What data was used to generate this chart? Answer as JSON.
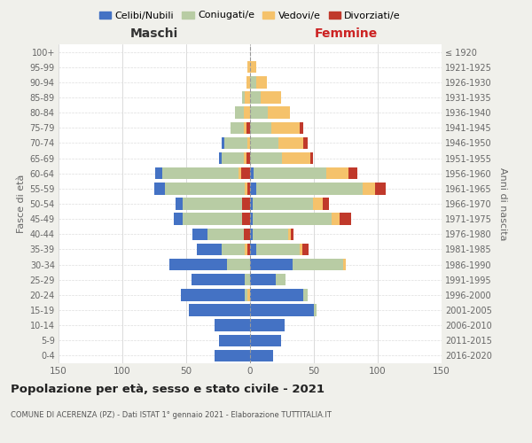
{
  "age_groups": [
    "0-4",
    "5-9",
    "10-14",
    "15-19",
    "20-24",
    "25-29",
    "30-34",
    "35-39",
    "40-44",
    "45-49",
    "50-54",
    "55-59",
    "60-64",
    "65-69",
    "70-74",
    "75-79",
    "80-84",
    "85-89",
    "90-94",
    "95-99",
    "100+"
  ],
  "anni_nascita": [
    "2016-2020",
    "2011-2015",
    "2006-2010",
    "2001-2005",
    "1996-2000",
    "1991-1995",
    "1986-1990",
    "1981-1985",
    "1976-1980",
    "1971-1975",
    "1966-1970",
    "1961-1965",
    "1956-1960",
    "1951-1955",
    "1946-1950",
    "1941-1945",
    "1936-1940",
    "1931-1935",
    "1926-1930",
    "1921-1925",
    "≤ 1920"
  ],
  "maschi": {
    "celibi": [
      28,
      24,
      28,
      48,
      50,
      42,
      45,
      20,
      12,
      7,
      5,
      8,
      5,
      2,
      2,
      0,
      0,
      0,
      0,
      0,
      0
    ],
    "coniugati": [
      0,
      0,
      0,
      0,
      2,
      4,
      18,
      18,
      28,
      47,
      47,
      63,
      60,
      17,
      18,
      10,
      7,
      2,
      0,
      0,
      0
    ],
    "vedovi": [
      0,
      0,
      0,
      0,
      2,
      0,
      0,
      2,
      0,
      0,
      0,
      2,
      2,
      2,
      2,
      2,
      5,
      4,
      3,
      2,
      0
    ],
    "divorziati": [
      0,
      0,
      0,
      0,
      0,
      0,
      0,
      2,
      5,
      6,
      6,
      2,
      7,
      3,
      0,
      3,
      0,
      0,
      0,
      0,
      0
    ]
  },
  "femmine": {
    "nubili": [
      18,
      24,
      27,
      50,
      42,
      20,
      33,
      5,
      2,
      2,
      2,
      5,
      3,
      0,
      0,
      0,
      0,
      0,
      0,
      0,
      0
    ],
    "coniugate": [
      0,
      0,
      0,
      2,
      3,
      8,
      40,
      34,
      28,
      62,
      47,
      83,
      57,
      25,
      22,
      17,
      14,
      8,
      5,
      0,
      0
    ],
    "vedove": [
      0,
      0,
      0,
      0,
      0,
      0,
      2,
      2,
      2,
      6,
      8,
      10,
      17,
      22,
      20,
      22,
      17,
      16,
      8,
      5,
      0
    ],
    "divorziate": [
      0,
      0,
      0,
      0,
      0,
      0,
      0,
      5,
      2,
      9,
      5,
      8,
      7,
      2,
      3,
      3,
      0,
      0,
      0,
      0,
      0
    ]
  },
  "colors": {
    "celibi_nubili": "#4472c4",
    "coniugati": "#b8cca4",
    "vedovi": "#f5c26b",
    "divorziati": "#c0392b"
  },
  "xlim": 150,
  "title": "Popolazione per età, sesso e stato civile - 2021",
  "subtitle": "COMUNE DI ACERENZA (PZ) - Dati ISTAT 1° gennaio 2021 - Elaborazione TUTTITALIA.IT",
  "xlabel_left": "Maschi",
  "xlabel_right": "Femmine",
  "ylabel_left": "Fasce di età",
  "ylabel_right": "Anni di nascita",
  "bg_color": "#f0f0eb",
  "plot_bg_color": "#ffffff"
}
